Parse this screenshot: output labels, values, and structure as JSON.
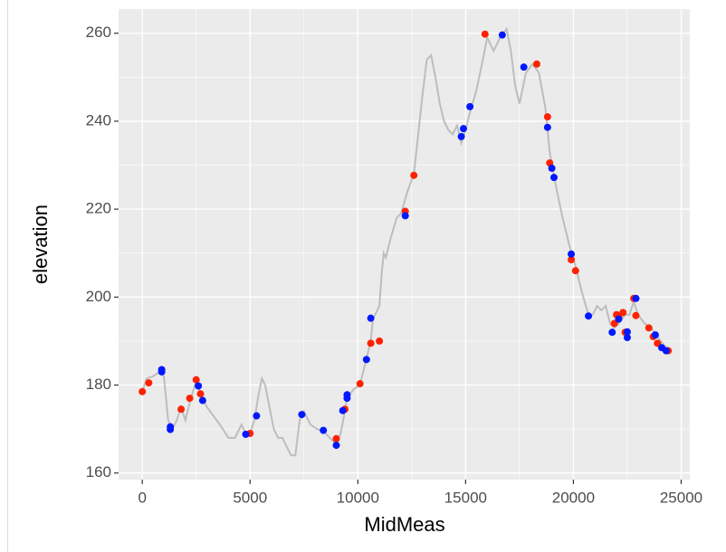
{
  "chart_data": {
    "type": "line",
    "x_label": "MidMeas",
    "y_label": "elevation",
    "xlim": [
      -1100,
      25400
    ],
    "ylim": [
      158.5,
      265.5
    ],
    "xticks": [
      0,
      5000,
      10000,
      15000,
      20000,
      25000
    ],
    "yticks": [
      160,
      180,
      200,
      220,
      240,
      260
    ],
    "grid": true,
    "series": [
      {
        "kind": "line",
        "color": "#bdbdbd",
        "x": [
          0,
          200,
          500,
          800,
          1000,
          1200,
          1400,
          1600,
          1800,
          2000,
          2200,
          2500,
          2700,
          3000,
          3300,
          3600,
          4000,
          4300,
          4600,
          4800,
          5000,
          5200,
          5400,
          5550,
          5700,
          5900,
          6100,
          6300,
          6500,
          6700,
          6900,
          7100,
          7300,
          7500,
          7800,
          8100,
          8400,
          8700,
          9000,
          9200,
          9400,
          9500,
          9800,
          10100,
          10400,
          10600,
          10700,
          11000,
          11100,
          11200,
          11300,
          11500,
          11800,
          12000,
          12300,
          12600,
          12800,
          13000,
          13200,
          13400,
          13600,
          13800,
          14000,
          14200,
          14400,
          14600,
          14800,
          15000,
          15200,
          15500,
          15800,
          16000,
          16300,
          16600,
          16900,
          17100,
          17300,
          17500,
          17800,
          18100,
          18400,
          18700,
          18900,
          19200,
          19500,
          19800,
          20100,
          20400,
          20700,
          20900,
          21100,
          21300,
          21500,
          21700,
          21900,
          22100,
          22400,
          22600,
          22800,
          23000,
          23300,
          23600,
          23900,
          24200,
          24500
        ],
        "values": [
          178.5,
          181.5,
          182,
          183,
          182,
          172,
          170,
          172,
          175,
          172,
          176,
          181,
          178,
          175,
          173,
          171,
          168,
          168,
          171,
          169,
          169,
          172,
          178,
          181.5,
          180,
          175,
          170,
          168,
          168,
          166,
          164,
          164,
          172,
          174,
          171,
          170,
          169.5,
          168,
          166.5,
          169,
          174,
          177,
          179,
          180,
          186,
          190,
          195,
          198,
          205,
          210,
          209,
          213,
          218,
          219,
          224,
          228,
          237,
          246,
          254,
          255,
          250,
          244,
          240,
          238,
          237,
          239,
          235,
          238,
          242,
          247,
          254,
          259,
          256,
          259,
          261,
          256,
          248,
          244,
          251,
          253,
          251,
          243,
          233,
          225,
          218,
          212,
          207,
          201,
          196,
          196,
          198,
          197,
          198,
          194,
          193,
          194,
          196,
          196,
          199,
          196,
          194,
          193,
          191,
          189,
          188
        ]
      },
      {
        "kind": "points",
        "color": "#ff2200",
        "x": [
          0,
          300,
          1800,
          2200,
          2500,
          2700,
          5000,
          9000,
          9400,
          10100,
          10600,
          11000,
          12600,
          12200,
          15900,
          18300,
          18800,
          18900,
          19900,
          20100,
          21900,
          22000,
          22100,
          22300,
          22400,
          22800,
          22900,
          23500,
          23700,
          23900,
          24400
        ],
        "values": [
          178.5,
          180.5,
          174.5,
          177,
          181.2,
          178,
          169,
          167.8,
          174.5,
          180.3,
          189.5,
          190,
          227.7,
          219.5,
          259.8,
          253,
          241,
          230.5,
          208.5,
          206,
          194,
          196,
          195.5,
          196.5,
          192,
          199.7,
          195.8,
          193,
          191,
          189.5,
          187.8
        ]
      },
      {
        "kind": "points",
        "color": "#0018ff",
        "x": [
          900,
          900,
          1300,
          1300,
          2600,
          2800,
          4800,
          5300,
          7400,
          8400,
          9000,
          9300,
          9500,
          9500,
          10400,
          10600,
          12200,
          14800,
          14900,
          15200,
          16700,
          17700,
          18800,
          19000,
          19100,
          19900,
          20700,
          21800,
          22100,
          22500,
          22500,
          22900,
          23800,
          24100,
          24300
        ],
        "values": [
          183.5,
          183,
          170.5,
          169.9,
          179.8,
          176.5,
          168.8,
          173,
          173.3,
          169.7,
          166.3,
          174.2,
          177,
          177.8,
          185.8,
          195.2,
          218.5,
          236.5,
          238.3,
          243.3,
          259.6,
          252.3,
          238.6,
          229.3,
          227.2,
          209.8,
          195.7,
          192,
          195,
          190.8,
          192.1,
          199.7,
          191.4,
          188.5,
          187.8
        ]
      }
    ]
  }
}
